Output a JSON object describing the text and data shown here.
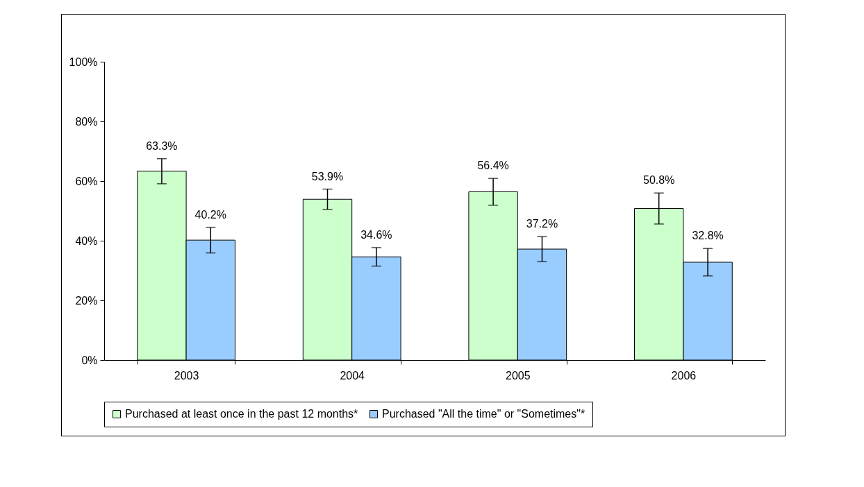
{
  "chart_data": {
    "type": "bar",
    "categories": [
      "2003",
      "2004",
      "2005",
      "2006"
    ],
    "series": [
      {
        "name": "Purchased at least once in the past 12 months*",
        "color": "#ccffcc",
        "values": [
          63.3,
          53.9,
          56.4,
          50.8
        ],
        "errors": [
          4.2,
          3.4,
          4.5,
          5.2
        ],
        "value_labels": [
          "63.3%",
          "53.9%",
          "56.4%",
          "50.8%"
        ]
      },
      {
        "name": "Purchased \"All the time\" or \"Sometimes\"*",
        "color": "#99ccff",
        "values": [
          40.2,
          34.6,
          37.2,
          32.8
        ],
        "errors": [
          4.3,
          3.1,
          4.2,
          4.6
        ],
        "value_labels": [
          "40.2%",
          "34.6%",
          "37.2%",
          "32.8%"
        ]
      }
    ],
    "ylim": [
      0,
      100
    ],
    "yticks": [
      {
        "value": 0,
        "label": "0%"
      },
      {
        "value": 20,
        "label": "20%"
      },
      {
        "value": 40,
        "label": "40%"
      },
      {
        "value": 60,
        "label": "60%"
      },
      {
        "value": 80,
        "label": "80%"
      },
      {
        "value": 100,
        "label": "100%"
      }
    ],
    "grid": false,
    "legend": "bottom"
  }
}
